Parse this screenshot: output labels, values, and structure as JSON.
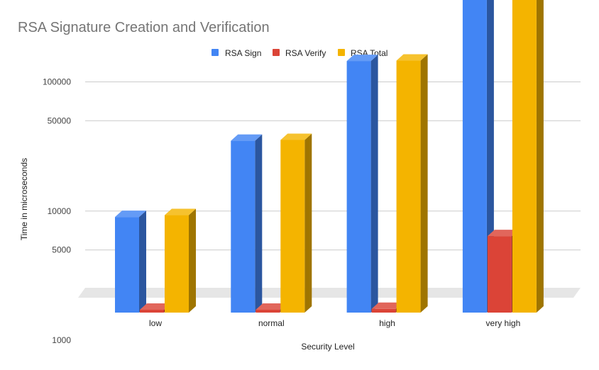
{
  "chart_data": {
    "type": "bar",
    "style": "3d-column",
    "title": "RSA Signature Creation and Verification",
    "xlabel": "Security Level",
    "ylabel": "Time in microseconds",
    "y_scale": "log",
    "yticks": [
      500,
      1000,
      5000,
      10000,
      50000,
      100000,
      500000
    ],
    "ylim": [
      300,
      700000
    ],
    "grid": true,
    "legend_position": "top",
    "categories": [
      "low",
      "normal",
      "high",
      "very high"
    ],
    "series": [
      {
        "name": "RSA Sign",
        "color": "#4285f4",
        "values": [
          9000,
          35000,
          145000,
          630000
        ]
      },
      {
        "name": "RSA Verify",
        "color": "#db4437",
        "values": [
          340,
          620,
          1750,
          6400
        ]
      },
      {
        "name": "RSA Total",
        "color": "#f4b400",
        "values": [
          9300,
          35500,
          146000,
          636000
        ]
      }
    ]
  }
}
